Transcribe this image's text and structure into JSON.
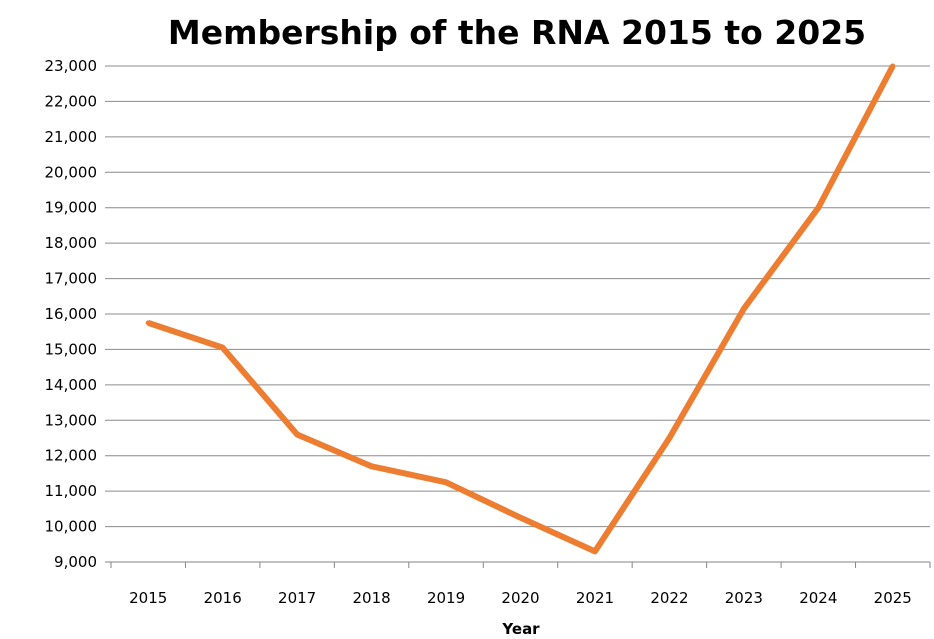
{
  "chart_data": {
    "type": "line",
    "title": "Membership of the RNA 2015 to 2025",
    "xlabel": "Year",
    "ylabel": "",
    "categories": [
      "2015",
      "2016",
      "2017",
      "2018",
      "2019",
      "2020",
      "2021",
      "2022",
      "2023",
      "2024",
      "2025"
    ],
    "y_tick_labels": [
      "23,000",
      "22,000",
      "21,000",
      "20,000",
      "19,000",
      "18,000",
      "17,000",
      "16,000",
      "15,000",
      "14,000",
      "13,000",
      "12,000",
      "11,000",
      "10,000",
      "9,000"
    ],
    "ylim": [
      9000,
      23000
    ],
    "grid": true,
    "legend": "none",
    "series": [
      {
        "color": "#ED7D31",
        "values": [
          15750,
          15050,
          12600,
          11700,
          11250,
          10250,
          9300,
          12500,
          16150,
          19000,
          23000
        ]
      }
    ]
  }
}
